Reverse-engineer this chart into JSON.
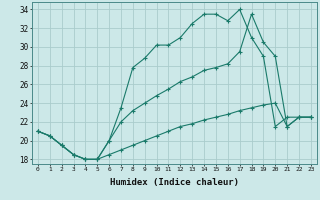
{
  "xlabel": "Humidex (Indice chaleur)",
  "background_color": "#cce8e8",
  "grid_color": "#aacccc",
  "line_color": "#1a7a6a",
  "xlim": [
    -0.5,
    23.5
  ],
  "ylim": [
    17.5,
    34.8
  ],
  "xticks": [
    0,
    1,
    2,
    3,
    4,
    5,
    6,
    7,
    8,
    9,
    10,
    11,
    12,
    13,
    14,
    15,
    16,
    17,
    18,
    19,
    20,
    21,
    22,
    23
  ],
  "yticks": [
    18,
    20,
    22,
    24,
    26,
    28,
    30,
    32,
    34
  ],
  "line1_x": [
    0,
    1,
    2,
    3,
    4,
    5,
    6,
    7,
    8,
    9,
    10,
    11,
    12,
    13,
    14,
    15,
    16,
    17,
    18,
    19,
    20,
    21,
    22,
    23
  ],
  "line1_y": [
    21,
    20.5,
    19.5,
    18.5,
    18,
    18,
    20,
    23.5,
    27.8,
    28.8,
    30.2,
    30.2,
    31,
    32.5,
    33.5,
    33.5,
    32.8,
    34.0,
    31.0,
    29.0,
    21.5,
    22.5,
    22.5,
    22.5
  ],
  "line1_markers_x": [
    0,
    1,
    2,
    3,
    4,
    5,
    6,
    7,
    8,
    9,
    10,
    11,
    12,
    13,
    14,
    15,
    16,
    17,
    18,
    19,
    20,
    21,
    22,
    23
  ],
  "line1_markers_y": [
    21,
    20.5,
    19.5,
    18.5,
    18,
    18,
    20,
    23.5,
    27.8,
    28.8,
    30.2,
    30.2,
    31,
    32.5,
    33.5,
    33.5,
    32.8,
    34.0,
    31.0,
    29.0,
    21.5,
    22.5,
    22.5,
    22.5
  ],
  "line2_x": [
    0,
    1,
    2,
    3,
    4,
    5,
    6,
    7,
    8,
    9,
    10,
    11,
    12,
    13,
    14,
    15,
    16,
    17,
    18,
    19,
    20,
    21,
    22,
    23
  ],
  "line2_y": [
    21,
    20.5,
    19.5,
    18.5,
    18,
    18,
    20,
    22,
    23.2,
    24,
    24.8,
    25.5,
    26.3,
    26.8,
    27.5,
    27.8,
    28.2,
    29.5,
    33.5,
    30.5,
    29.0,
    21.5,
    22.5,
    22.5
  ],
  "line3_x": [
    0,
    1,
    2,
    3,
    4,
    5,
    6,
    7,
    8,
    9,
    10,
    11,
    12,
    13,
    14,
    15,
    16,
    17,
    18,
    19,
    20,
    21,
    22,
    23
  ],
  "line3_y": [
    21,
    20.5,
    19.5,
    18.5,
    18,
    18,
    18.5,
    19.0,
    19.5,
    20.0,
    20.5,
    21.0,
    21.5,
    21.8,
    22.2,
    22.5,
    22.8,
    23.2,
    23.5,
    23.8,
    24.0,
    21.5,
    22.5,
    22.5
  ]
}
